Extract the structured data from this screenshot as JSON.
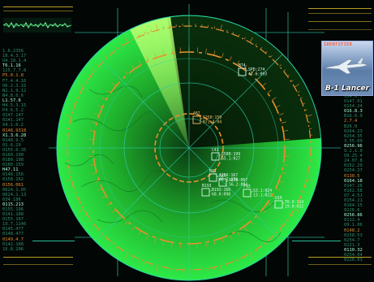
{
  "ident_panel": {
    "title": "IDENTIFIED",
    "aircraft_name": "B-1 Lancer"
  },
  "left_column": [
    "1.6.2356",
    "18.4.3.17",
    "U4.18.1.4",
    "T6.1.16",
    "125.7.7.8",
    "P5.0.1.8",
    "F7.4.4.16",
    "O6.2.3.15",
    "N2.1.9.12",
    "N4.8.0.6",
    "L1.57.6",
    "H4.5.3.15",
    "P4.6.5.2",
    "O147.147",
    "0141.147",
    "X4.1.6.2",
    "0148.9318",
    "X1.3.6.28",
    "0148.9.5",
    "O1.6.29",
    "O155.6.35",
    "0160.190",
    "0180.198",
    "0180.159",
    "H47.11",
    "0148.156",
    "0158.162",
    "0156.061",
    "0624.1.05",
    "0624.1.13",
    "034.186",
    "0115.213",
    "0155.196",
    "0141.188",
    "0155.167",
    "19.7.1146",
    "0145.477",
    "0148.477",
    "0149.4.7",
    "0142.188",
    "16.8.206"
  ],
  "right_column": [
    "334.0.7",
    "O147.01",
    "0154.24",
    "O16.8.3",
    "B16.6.9",
    "2.7.4",
    "B26.0",
    "0264.23",
    "0254.35",
    "3.55.09",
    "0256.96",
    "9.2.1.0",
    "O9.25.4",
    "24.07.8",
    "0152.29",
    "0254.27",
    "0130.5",
    "0164.18",
    "0147.26",
    "0162.58",
    "O7.4.51",
    "0154.21",
    "0164.15",
    "0226.6",
    "0256.86",
    "0112.4",
    "O9.1.06",
    "0148.2",
    "0258.53",
    "0254.7",
    "0221.3",
    "0110.32",
    "0254.04",
    "0226.03"
  ],
  "targets": [
    {
      "label": "B74",
      "readout": [
        "SPD:274",
        "47.6:093"
      ]
    },
    {
      "label": "A87",
      "readout": [
        "S250:159",
        "B71.4:04"
      ]
    },
    {
      "label": "C41",
      "readout": [
        "S588:199",
        "S5.1:027"
      ]
    },
    {
      "label": "B21",
      "readout": [
        "S256:167",
        "46.7:070"
      ]
    },
    {
      "label": "A34",
      "readout": [
        "S256:067",
        "S6.2:094"
      ]
    },
    {
      "label": "B193",
      "readout": [
        "B193:166",
        "68.0:098"
      ]
    },
    {
      "label": "F93",
      "readout": [
        "S3.1:024",
        "13.1:022"
      ]
    },
    {
      "label": "U19",
      "readout": [
        "T6.9:114",
        "19.0:032"
      ]
    }
  ],
  "colors": {
    "radar_green": "#22e640",
    "sweep_green": "#9dff6a",
    "ring_orange": "#e8902e",
    "grid_cyan": "#35d9b6",
    "accent_yellow": "#d9b52a"
  }
}
